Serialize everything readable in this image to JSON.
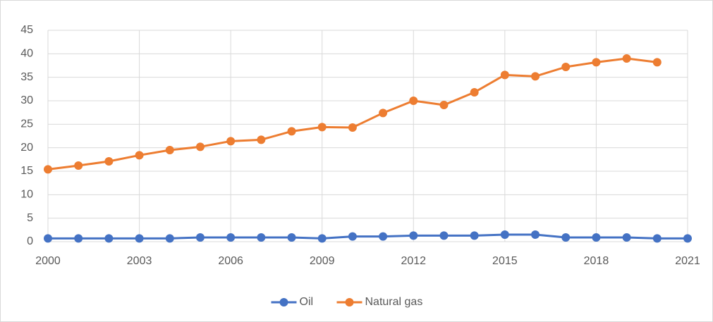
{
  "chart_data": {
    "type": "line",
    "x": [
      2000,
      2001,
      2002,
      2003,
      2004,
      2005,
      2006,
      2007,
      2008,
      2009,
      2010,
      2011,
      2012,
      2013,
      2014,
      2015,
      2016,
      2017,
      2018,
      2019,
      2020,
      2021
    ],
    "series": [
      {
        "name": "Oil",
        "color": "#4472c4",
        "values": [
          0.7,
          0.7,
          0.7,
          0.7,
          0.7,
          0.9,
          0.9,
          0.9,
          0.9,
          0.7,
          1.1,
          1.1,
          1.3,
          1.3,
          1.3,
          1.5,
          1.5,
          0.9,
          0.9,
          0.9,
          0.7,
          0.7
        ]
      },
      {
        "name": "Natural gas",
        "color": "#ed7d31",
        "values": [
          15.4,
          16.2,
          17.1,
          18.4,
          19.5,
          20.2,
          21.4,
          21.7,
          23.5,
          24.4,
          24.3,
          27.4,
          30.0,
          29.1,
          31.8,
          35.5,
          35.2,
          37.2,
          38.2,
          39.0,
          38.2,
          null
        ]
      }
    ],
    "xlim": [
      2000,
      2021
    ],
    "xticks": [
      2000,
      2003,
      2006,
      2009,
      2012,
      2015,
      2018,
      2021
    ],
    "ylim": [
      0,
      45
    ],
    "yticks": [
      0,
      5,
      10,
      15,
      20,
      25,
      30,
      35,
      40,
      45
    ],
    "grid": true,
    "legend": "bottom"
  }
}
